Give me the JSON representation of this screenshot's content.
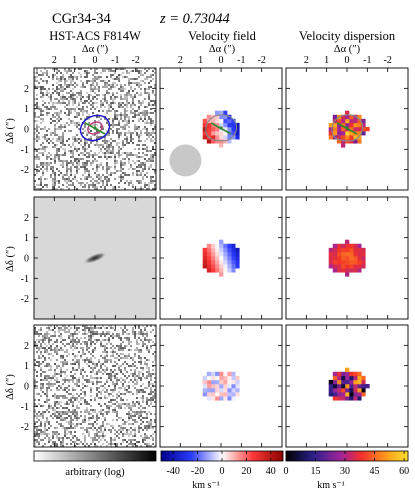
{
  "header": {
    "object_name": "CGr34-34",
    "redshift_label": "z = 0.73044"
  },
  "columns": [
    {
      "title": "HST-ACS F814W"
    },
    {
      "title": "Velocity field"
    },
    {
      "title": "Velocity dispersion"
    }
  ],
  "axes": {
    "x_label": "Δα (″)",
    "y_label": "Δδ (″)",
    "x_ticks": [
      {
        "value": 2,
        "label": "2"
      },
      {
        "value": 1,
        "label": "1"
      },
      {
        "value": 0,
        "label": "0"
      },
      {
        "value": -1,
        "label": "-1"
      },
      {
        "value": -2,
        "label": "-2"
      }
    ],
    "y_ticks": [
      {
        "value": 2,
        "label": "2"
      },
      {
        "value": 1,
        "label": "1"
      },
      {
        "value": 0,
        "label": "0"
      },
      {
        "value": -1,
        "label": "-1"
      },
      {
        "value": -2,
        "label": "-2"
      }
    ],
    "x_range": [
      3,
      -3
    ],
    "y_range": [
      -3,
      3
    ]
  },
  "colorbars": [
    {
      "label": "arbitrary (log)",
      "colormap": "greyscale",
      "ticks": []
    },
    {
      "label": "km s⁻¹",
      "colormap": "blue-white-red",
      "range": [
        -50,
        50
      ],
      "ticks": [
        {
          "value": -40,
          "label": "-40"
        },
        {
          "value": -20,
          "label": "-20"
        },
        {
          "value": 0,
          "label": "0"
        },
        {
          "value": 20,
          "label": "20"
        },
        {
          "value": 40,
          "label": "40"
        }
      ]
    },
    {
      "label": "km s⁻¹",
      "colormap": "black-purple-red-yellow",
      "range": [
        0,
        62
      ],
      "ticks": [
        {
          "value": 0,
          "label": "0"
        },
        {
          "value": 15,
          "label": "15"
        },
        {
          "value": 30,
          "label": "30"
        },
        {
          "value": 45,
          "label": "45"
        },
        {
          "value": 60,
          "label": "60"
        }
      ]
    }
  ],
  "colors": {
    "contour_outer": "#1a1acc",
    "contour_inner": "#c0307a",
    "contour_grey": "#888888",
    "kinematic_axis": "#2a8a2a",
    "psf_disk": "#c8c8c8",
    "model_background": "#d8d8d8"
  }
}
